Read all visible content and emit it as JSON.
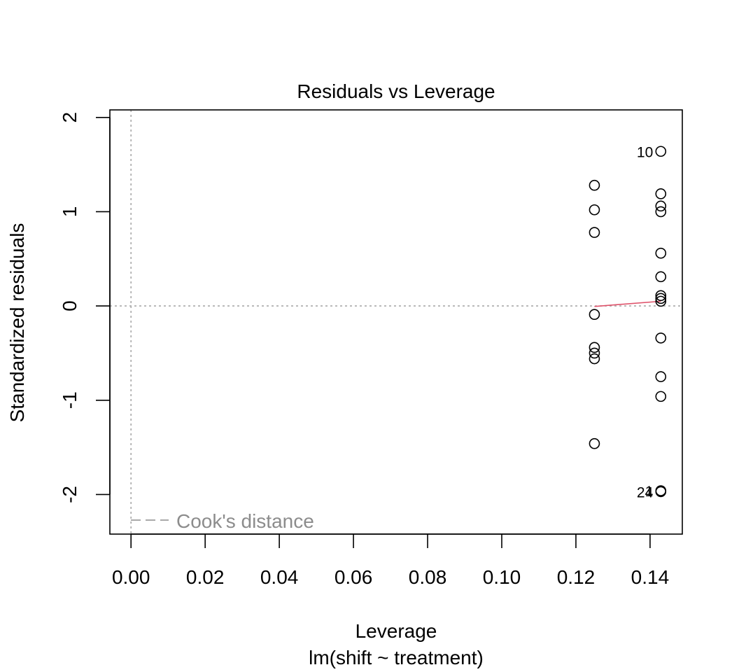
{
  "chart_data": {
    "type": "scatter",
    "title": "Residuals vs Leverage",
    "xlabel": "Leverage",
    "ylabel": "Standardized residuals",
    "subtitle": "lm(shift ~ treatment)",
    "xlim": [
      -0.0057,
      0.1487
    ],
    "ylim": [
      -2.42,
      2.08
    ],
    "xticks": [
      0.0,
      0.02,
      0.04,
      0.06,
      0.08,
      0.1,
      0.12,
      0.14
    ],
    "xtick_labels": [
      "0.00",
      "0.02",
      "0.04",
      "0.06",
      "0.08",
      "0.10",
      "0.12",
      "0.14"
    ],
    "yticks": [
      -2,
      -1,
      0,
      1,
      2
    ],
    "ytick_labels": [
      "-2",
      "-1",
      "0",
      "1",
      "2"
    ],
    "points": [
      {
        "x": 0.125,
        "y": 1.28
      },
      {
        "x": 0.125,
        "y": 1.02
      },
      {
        "x": 0.125,
        "y": 0.78
      },
      {
        "x": 0.125,
        "y": -0.09
      },
      {
        "x": 0.125,
        "y": -0.44
      },
      {
        "x": 0.125,
        "y": -0.5
      },
      {
        "x": 0.125,
        "y": -0.56
      },
      {
        "x": 0.125,
        "y": -1.46
      },
      {
        "x": 0.1429,
        "y": 1.64
      },
      {
        "x": 0.1429,
        "y": 1.19
      },
      {
        "x": 0.1429,
        "y": 1.06
      },
      {
        "x": 0.1429,
        "y": 1.0
      },
      {
        "x": 0.1429,
        "y": 0.56
      },
      {
        "x": 0.1429,
        "y": 0.31
      },
      {
        "x": 0.1429,
        "y": 0.11
      },
      {
        "x": 0.1429,
        "y": 0.08
      },
      {
        "x": 0.1429,
        "y": 0.05
      },
      {
        "x": 0.1429,
        "y": -0.34
      },
      {
        "x": 0.1429,
        "y": -0.75
      },
      {
        "x": 0.1429,
        "y": -0.96
      },
      {
        "x": 0.1429,
        "y": -1.96
      },
      {
        "x": 0.1429,
        "y": -1.97
      }
    ],
    "point_labels": [
      {
        "text": "10",
        "x": 0.1429,
        "y": 1.64
      },
      {
        "text": "1",
        "x": 0.1429,
        "y": -1.96
      },
      {
        "text": "24",
        "x": 0.1429,
        "y": -1.97
      }
    ],
    "smooth_line": [
      {
        "x": 0.125,
        "y": -0.005
      },
      {
        "x": 0.1429,
        "y": 0.05
      }
    ],
    "reference_lines": {
      "h": 0,
      "v": 0
    },
    "legend": {
      "label": "Cook's distance",
      "position": "bottom-left"
    },
    "colors": {
      "points": "#000000",
      "smooth": "#DF536B",
      "reference": "#A9A9A9",
      "legend_text": "#8C8C8C"
    },
    "grid": false
  }
}
